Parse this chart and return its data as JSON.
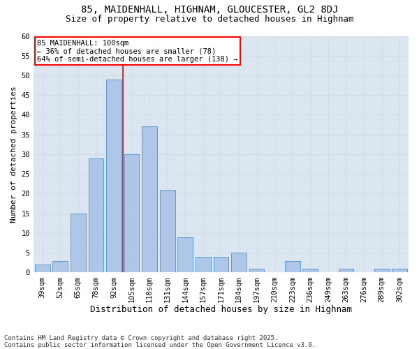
{
  "title1": "85, MAIDENHALL, HIGHNAM, GLOUCESTER, GL2 8DJ",
  "title2": "Size of property relative to detached houses in Highnam",
  "xlabel": "Distribution of detached houses by size in Highnam",
  "ylabel": "Number of detached properties",
  "categories": [
    "39sqm",
    "52sqm",
    "65sqm",
    "78sqm",
    "92sqm",
    "105sqm",
    "118sqm",
    "131sqm",
    "144sqm",
    "157sqm",
    "171sqm",
    "184sqm",
    "197sqm",
    "210sqm",
    "223sqm",
    "236sqm",
    "249sqm",
    "263sqm",
    "276sqm",
    "289sqm",
    "302sqm"
  ],
  "values": [
    2,
    3,
    15,
    29,
    49,
    30,
    37,
    21,
    9,
    4,
    4,
    5,
    1,
    0,
    3,
    1,
    0,
    1,
    0,
    1,
    1
  ],
  "bar_color": "#aec6e8",
  "bar_edge_color": "#5b9bd5",
  "red_line_x": 4.5,
  "annotation_text": "85 MAIDENHALL: 100sqm\n← 36% of detached houses are smaller (78)\n64% of semi-detached houses are larger (138) →",
  "annotation_box_color": "white",
  "annotation_box_edge_color": "red",
  "ylim": [
    0,
    60
  ],
  "yticks": [
    0,
    5,
    10,
    15,
    20,
    25,
    30,
    35,
    40,
    45,
    50,
    55,
    60
  ],
  "grid_color": "#d0dce8",
  "background_color": "#dce6f1",
  "footer": "Contains HM Land Registry data © Crown copyright and database right 2025.\nContains public sector information licensed under the Open Government Licence v3.0.",
  "title_fontsize": 10,
  "subtitle_fontsize": 9,
  "tick_fontsize": 7.5,
  "ylabel_fontsize": 8,
  "xlabel_fontsize": 9,
  "annotation_fontsize": 7.5,
  "footer_fontsize": 6.5
}
